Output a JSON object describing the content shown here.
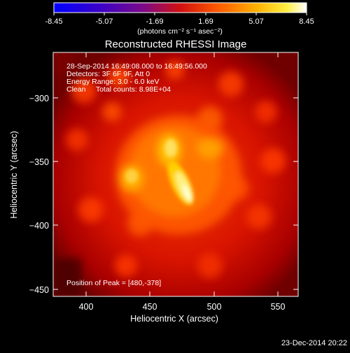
{
  "colorbar": {
    "ticks": [
      "-8.45",
      "-5.07",
      "-1.69",
      "1.69",
      "5.07",
      "8.45"
    ],
    "units": "(photons cm⁻² s⁻¹ asec⁻²)"
  },
  "title": "Reconstructed RHESSI Image",
  "info": {
    "line1": "28-Sep-2014 16:49:08.000 to 16:49:56.000",
    "line2": "Detectors: 3F 6F 9F, Att 0",
    "line3": "Energy Range: 3.0 - 6.0 keV",
    "line4": "Clean     Total counts: 8.98E+04"
  },
  "peak": "Position of Peak = [480,-378]",
  "axes": {
    "x_label": "Heliocentric X (arcsec)",
    "y_label": "Heliocentric Y (arcsec)",
    "x_ticks": [
      "400",
      "450",
      "500",
      "550"
    ],
    "y_ticks": [
      "−300",
      "−350",
      "−400",
      "−450"
    ]
  },
  "footer_date": "23-Dec-2014 20:22",
  "chart_data": {
    "type": "heatmap",
    "title": "Reconstructed RHESSI Image",
    "xlabel": "Heliocentric X (arcsec)",
    "ylabel": "Heliocentric Y (arcsec)",
    "xlim": [
      375,
      567
    ],
    "ylim": [
      -455,
      -282
    ],
    "colorbar_range": [
      -8.45,
      8.45
    ],
    "peak": [
      480,
      -378
    ]
  }
}
